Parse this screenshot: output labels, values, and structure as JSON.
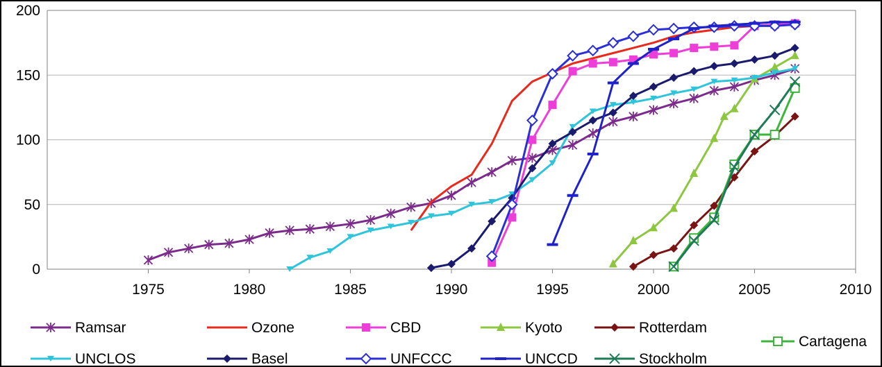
{
  "chart_data": {
    "type": "line",
    "title": "",
    "xlabel": "",
    "ylabel": "",
    "xlim": [
      1970,
      2010
    ],
    "ylim": [
      0,
      200
    ],
    "x_ticks": [
      1975,
      1980,
      1985,
      1990,
      1995,
      2000,
      2005,
      2010
    ],
    "y_ticks": [
      0,
      50,
      100,
      150,
      200
    ],
    "grid": "horizontal",
    "legend_position": "bottom",
    "series": [
      {
        "name": "Ramsar",
        "color": "#7B2C8B",
        "marker": "star",
        "points": [
          [
            1975,
            7
          ],
          [
            1976,
            13
          ],
          [
            1977,
            16
          ],
          [
            1978,
            19
          ],
          [
            1979,
            20
          ],
          [
            1980,
            23
          ],
          [
            1981,
            28
          ],
          [
            1982,
            30
          ],
          [
            1983,
            31
          ],
          [
            1984,
            33
          ],
          [
            1985,
            35
          ],
          [
            1986,
            38
          ],
          [
            1987,
            43
          ],
          [
            1988,
            48
          ],
          [
            1989,
            51
          ],
          [
            1990,
            57
          ],
          [
            1991,
            67
          ],
          [
            1992,
            75
          ],
          [
            1993,
            84
          ],
          [
            1994,
            86
          ],
          [
            1995,
            92
          ],
          [
            1996,
            96
          ],
          [
            1997,
            105
          ],
          [
            1998,
            114
          ],
          [
            1999,
            118
          ],
          [
            2000,
            123
          ],
          [
            2001,
            128
          ],
          [
            2002,
            132
          ],
          [
            2003,
            138
          ],
          [
            2004,
            141
          ],
          [
            2005,
            146
          ],
          [
            2006,
            150
          ],
          [
            2007,
            155
          ]
        ]
      },
      {
        "name": "Ozone",
        "color": "#E8291C",
        "marker": "none",
        "points": [
          [
            1988,
            30
          ],
          [
            1989,
            52
          ],
          [
            1990,
            64
          ],
          [
            1991,
            73
          ],
          [
            1992,
            97
          ],
          [
            1993,
            130
          ],
          [
            1994,
            145
          ],
          [
            1995,
            152
          ],
          [
            1996,
            159
          ],
          [
            1997,
            163
          ],
          [
            1998,
            167
          ],
          [
            1999,
            171
          ],
          [
            2000,
            175
          ],
          [
            2001,
            180
          ],
          [
            2002,
            183
          ],
          [
            2003,
            185
          ],
          [
            2004,
            187
          ],
          [
            2005,
            188
          ],
          [
            2006,
            189
          ],
          [
            2007,
            191
          ]
        ]
      },
      {
        "name": "CBD",
        "color": "#EE3ED8",
        "marker": "square",
        "points": [
          [
            1992,
            5
          ],
          [
            1993,
            40
          ],
          [
            1994,
            100
          ],
          [
            1995,
            127
          ],
          [
            1996,
            153
          ],
          [
            1997,
            159
          ],
          [
            1998,
            160
          ],
          [
            1999,
            162
          ],
          [
            2000,
            166
          ],
          [
            2001,
            167
          ],
          [
            2002,
            171
          ],
          [
            2003,
            172
          ],
          [
            2004,
            173
          ],
          [
            2005,
            188
          ],
          [
            2006,
            189
          ],
          [
            2007,
            190
          ]
        ]
      },
      {
        "name": "Kyoto",
        "color": "#8DC63F",
        "marker": "triangle",
        "points": [
          [
            1998,
            4
          ],
          [
            1999,
            22
          ],
          [
            2000,
            32
          ],
          [
            2001,
            47
          ],
          [
            2002,
            74
          ],
          [
            2003,
            101
          ],
          [
            2003.5,
            118
          ],
          [
            2004,
            124
          ],
          [
            2005,
            147
          ],
          [
            2006,
            156
          ],
          [
            2007,
            165
          ]
        ]
      },
      {
        "name": "Rotterdam",
        "color": "#7A1414",
        "marker": "diamond",
        "points": [
          [
            1999,
            2
          ],
          [
            2000,
            11
          ],
          [
            2001,
            16
          ],
          [
            2002,
            34
          ],
          [
            2003,
            49
          ],
          [
            2004,
            71
          ],
          [
            2005,
            91
          ],
          [
            2006,
            103
          ],
          [
            2007,
            118
          ]
        ]
      },
      {
        "name": "Cartagena",
        "color": "#3DB53D",
        "marker": "square-open",
        "points": [
          [
            2001,
            2
          ],
          [
            2002,
            24
          ],
          [
            2003,
            40
          ],
          [
            2004,
            81
          ],
          [
            2005,
            104
          ],
          [
            2006,
            104
          ],
          [
            2007,
            140
          ]
        ]
      },
      {
        "name": "UNCLOS",
        "color": "#2EC4DA",
        "marker": "triangle-down",
        "points": [
          [
            1982,
            0
          ],
          [
            1983,
            9
          ],
          [
            1984,
            14
          ],
          [
            1985,
            25
          ],
          [
            1986,
            30
          ],
          [
            1987,
            33
          ],
          [
            1988,
            36
          ],
          [
            1989,
            41
          ],
          [
            1990,
            43
          ],
          [
            1991,
            50
          ],
          [
            1992,
            52
          ],
          [
            1993,
            58
          ],
          [
            1994,
            69
          ],
          [
            1995,
            82
          ],
          [
            1996,
            110
          ],
          [
            1997,
            122
          ],
          [
            1998,
            127
          ],
          [
            1999,
            129
          ],
          [
            2000,
            132
          ],
          [
            2001,
            136
          ],
          [
            2002,
            139
          ],
          [
            2003,
            145
          ],
          [
            2004,
            146
          ],
          [
            2005,
            148
          ],
          [
            2006,
            152
          ],
          [
            2007,
            155
          ]
        ]
      },
      {
        "name": "Basel",
        "color": "#1B1B6E",
        "marker": "diamond",
        "points": [
          [
            1989,
            1
          ],
          [
            1990,
            4
          ],
          [
            1991,
            16
          ],
          [
            1992,
            37
          ],
          [
            1993,
            55
          ],
          [
            1994,
            78
          ],
          [
            1995,
            97
          ],
          [
            1996,
            106
          ],
          [
            1997,
            115
          ],
          [
            1998,
            121
          ],
          [
            1999,
            134
          ],
          [
            2000,
            141
          ],
          [
            2001,
            148
          ],
          [
            2002,
            153
          ],
          [
            2003,
            157
          ],
          [
            2004,
            159
          ],
          [
            2005,
            162
          ],
          [
            2006,
            165
          ],
          [
            2007,
            171
          ]
        ]
      },
      {
        "name": "UNFCCC",
        "color": "#2A2FD8",
        "marker": "diamond-open",
        "points": [
          [
            1992,
            10
          ],
          [
            1993,
            50
          ],
          [
            1994,
            115
          ],
          [
            1995,
            151
          ],
          [
            1996,
            165
          ],
          [
            1997,
            169
          ],
          [
            1998,
            175
          ],
          [
            1999,
            180
          ],
          [
            2000,
            185
          ],
          [
            2001,
            186
          ],
          [
            2002,
            187
          ],
          [
            2003,
            187
          ],
          [
            2004,
            188
          ],
          [
            2005,
            188
          ],
          [
            2006,
            188
          ],
          [
            2007,
            189
          ]
        ]
      },
      {
        "name": "UNCCD",
        "color": "#1E22C8",
        "marker": "dash",
        "points": [
          [
            1995,
            19
          ],
          [
            1996,
            57
          ],
          [
            1997,
            89
          ],
          [
            1998,
            144
          ],
          [
            1999,
            159
          ],
          [
            2000,
            170
          ],
          [
            2001,
            178
          ],
          [
            2002,
            186
          ],
          [
            2003,
            188
          ],
          [
            2004,
            189
          ],
          [
            2005,
            190
          ],
          [
            2006,
            191
          ],
          [
            2007,
            191
          ]
        ]
      },
      {
        "name": "Stockholm",
        "color": "#1E7A57",
        "marker": "x",
        "points": [
          [
            2001,
            2
          ],
          [
            2002,
            22
          ],
          [
            2003,
            38
          ],
          [
            2004,
            79
          ],
          [
            2005,
            104
          ],
          [
            2006,
            123
          ],
          [
            2007,
            145
          ]
        ]
      }
    ]
  }
}
